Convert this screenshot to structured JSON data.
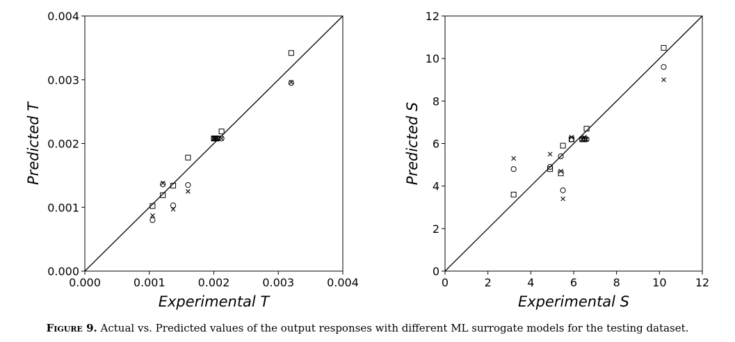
{
  "caption": {
    "label": "Figure 9.",
    "text": "Actual vs. Predicted values of the output responses with different ML surrogate models for the testing dataset."
  },
  "chart_data": [
    {
      "type": "scatter",
      "xlabel": "Experimental T",
      "ylabel": "Predicted T",
      "xlim": [
        0,
        0.004
      ],
      "ylim": [
        0,
        0.004
      ],
      "xticks": [
        0,
        0.001,
        0.002,
        0.003,
        0.004
      ],
      "xtick_labels": [
        "0.000",
        "0.001",
        "0.002",
        "0.003",
        "0.004"
      ],
      "yticks": [
        0,
        0.001,
        0.002,
        0.003,
        0.004
      ],
      "ytick_labels": [
        "0.000",
        "0.001",
        "0.002",
        "0.003",
        "0.004"
      ],
      "reference_line": "y = x",
      "grid": false,
      "series": [
        {
          "marker": "square",
          "points": [
            [
              0.00105,
              0.00102
            ],
            [
              0.00121,
              0.00119
            ],
            [
              0.00137,
              0.00134
            ],
            [
              0.0016,
              0.00178
            ],
            [
              0.002,
              0.00208
            ],
            [
              0.00202,
              0.00208
            ],
            [
              0.00205,
              0.00208
            ],
            [
              0.00212,
              0.00219
            ],
            [
              0.0032,
              0.00342
            ]
          ]
        },
        {
          "marker": "circle",
          "points": [
            [
              0.00105,
              0.0008
            ],
            [
              0.00121,
              0.00136
            ],
            [
              0.00137,
              0.00103
            ],
            [
              0.0016,
              0.00135
            ],
            [
              0.002,
              0.00208
            ],
            [
              0.00202,
              0.00208
            ],
            [
              0.00205,
              0.00208
            ],
            [
              0.00212,
              0.00208
            ],
            [
              0.0032,
              0.00295
            ]
          ]
        },
        {
          "marker": "x",
          "points": [
            [
              0.00105,
              0.00087
            ],
            [
              0.00121,
              0.00138
            ],
            [
              0.00137,
              0.00097
            ],
            [
              0.0016,
              0.00125
            ],
            [
              0.002,
              0.00208
            ],
            [
              0.00202,
              0.00208
            ],
            [
              0.00205,
              0.00208
            ],
            [
              0.00212,
              0.00208
            ],
            [
              0.0032,
              0.00296
            ]
          ]
        }
      ]
    },
    {
      "type": "scatter",
      "xlabel": "Experimental S",
      "ylabel": "Predicted S",
      "xlim": [
        0,
        12
      ],
      "ylim": [
        0,
        12
      ],
      "xticks": [
        0,
        2,
        4,
        6,
        8,
        10,
        12
      ],
      "xtick_labels": [
        "0",
        "2",
        "4",
        "6",
        "8",
        "10",
        "12"
      ],
      "yticks": [
        0,
        2,
        4,
        6,
        8,
        10,
        12
      ],
      "ytick_labels": [
        "0",
        "2",
        "4",
        "6",
        "8",
        "10",
        "12"
      ],
      "reference_line": "y = x",
      "grid": false,
      "series": [
        {
          "marker": "square",
          "points": [
            [
              3.2,
              3.6
            ],
            [
              4.9,
              4.8
            ],
            [
              5.4,
              4.6
            ],
            [
              5.5,
              5.9
            ],
            [
              5.9,
              6.2
            ],
            [
              6.4,
              6.2
            ],
            [
              6.5,
              6.2
            ],
            [
              6.6,
              6.7
            ],
            [
              10.2,
              10.5
            ]
          ]
        },
        {
          "marker": "circle",
          "points": [
            [
              3.2,
              4.8
            ],
            [
              4.9,
              4.9
            ],
            [
              5.4,
              5.4
            ],
            [
              5.5,
              3.8
            ],
            [
              5.9,
              6.2
            ],
            [
              6.4,
              6.2
            ],
            [
              6.5,
              6.2
            ],
            [
              6.6,
              6.2
            ],
            [
              10.2,
              9.6
            ]
          ]
        },
        {
          "marker": "x",
          "points": [
            [
              3.2,
              5.3
            ],
            [
              4.9,
              5.5
            ],
            [
              5.4,
              4.7
            ],
            [
              5.5,
              3.4
            ],
            [
              5.9,
              6.3
            ],
            [
              6.4,
              6.2
            ],
            [
              6.5,
              6.3
            ],
            [
              6.6,
              6.2
            ],
            [
              10.2,
              9.0
            ]
          ]
        }
      ]
    }
  ]
}
